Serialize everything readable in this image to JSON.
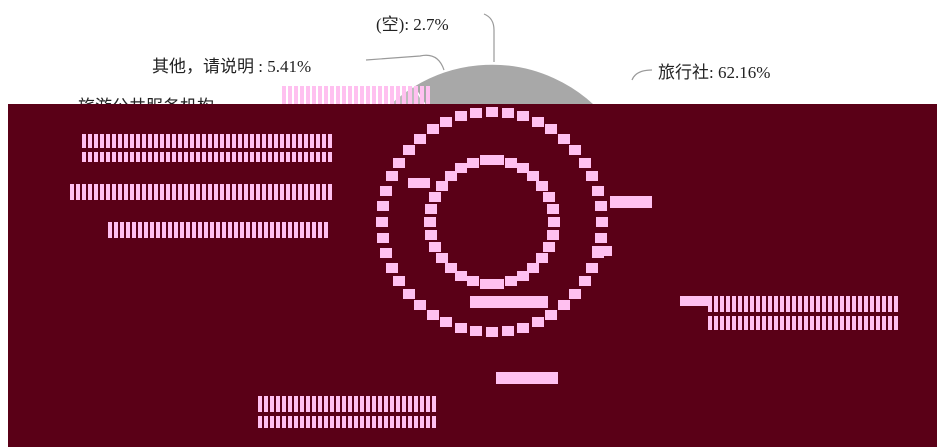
{
  "chart_data": {
    "type": "pie",
    "title": "",
    "slices": [
      {
        "label": "旅行社",
        "value": 62.16,
        "display": "旅行社: 62.16%"
      },
      {
        "label": "(空)",
        "value": 2.7,
        "display": "(空): 2.7%"
      },
      {
        "label": "其他，请说明",
        "value": 5.41,
        "display": "其他，请说明 : 5.41%"
      },
      {
        "label": "旅游公共服务机构",
        "value": null,
        "display": "旅游公共服务机构"
      }
    ],
    "legend": "none",
    "colors": {
      "slice": "#a8a8a8",
      "artifact_background": "#5a0017",
      "artifact_pattern": "#ffc0f0"
    }
  }
}
